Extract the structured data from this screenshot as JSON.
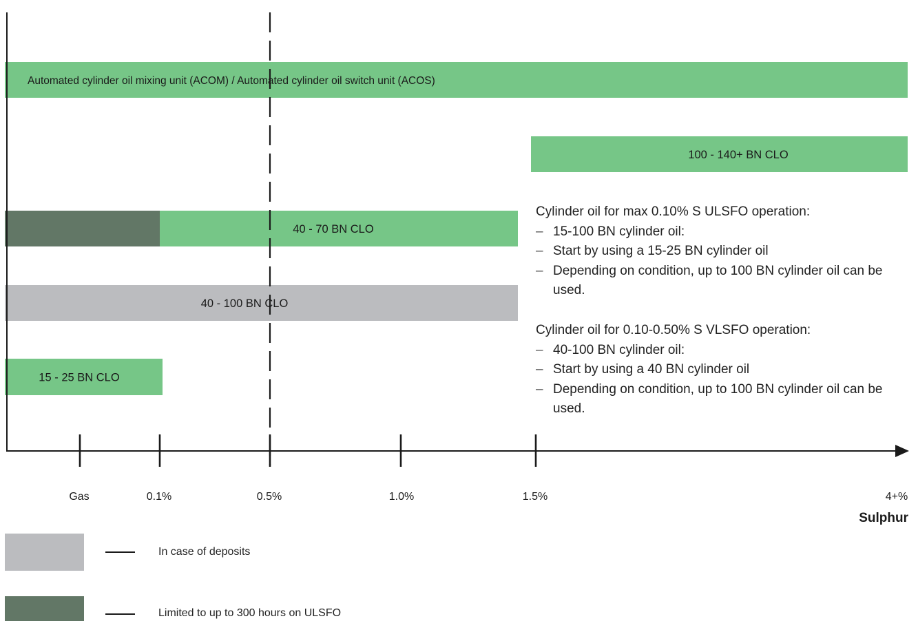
{
  "chart_data": {
    "type": "bar",
    "orientation": "horizontal",
    "xlabel": "Sulphur",
    "x_ticks": [
      "Gas",
      "0.1%",
      "0.5%",
      "1.0%",
      "1.5%",
      "4+%"
    ],
    "reference_line": "0.5%",
    "bars": [
      {
        "label": "Automated cylinder oil mixing unit (ACOM) / Automated cylinder oil switch unit (ACOS)",
        "segments": [
          {
            "from": "start",
            "to": "4+%",
            "color": "#76c687"
          }
        ]
      },
      {
        "label": "100 - 140+ BN CLO",
        "segments": [
          {
            "from": "1.5%",
            "to": "4+%",
            "color": "#76c687"
          }
        ]
      },
      {
        "label": "40 - 70 BN CLO",
        "segments": [
          {
            "from": "start",
            "to": "0.1%",
            "color": "#627766",
            "meaning": "Limited to up to 300 hours on ULSFO"
          },
          {
            "from": "0.1%",
            "to": "1.5%",
            "color": "#76c687"
          }
        ]
      },
      {
        "label": "40 - 100 BN CLO",
        "segments": [
          {
            "from": "start",
            "to": "1.5%",
            "color": "#bbbcbf",
            "meaning": "In case of deposits"
          }
        ]
      },
      {
        "label": "15 - 25 BN CLO",
        "segments": [
          {
            "from": "start",
            "to": "0.1%",
            "color": "#76c687"
          }
        ]
      }
    ],
    "legend": [
      {
        "label": "In case of deposits",
        "color": "#bbbcbf"
      },
      {
        "label": "Limited to up to 300 hours on ULSFO",
        "color": "#627766"
      }
    ]
  },
  "notes": {
    "ulsfo": {
      "heading": "Cylinder oil for max 0.10% S ULSFO operation:",
      "items": [
        "15-100 BN cylinder oil:",
        "Start by using a 15-25 BN cylinder oil",
        "Depending on condition, up to 100 BN cylinder oil can be used."
      ]
    },
    "vlsfo": {
      "heading": "Cylinder oil for 0.10-0.50% S VLSFO operation:",
      "items": [
        "40-100 BN cylinder oil:",
        "Start by using a 40 BN cylinder oil",
        "Depending on condition, up to 100 BN cylinder oil can be used."
      ]
    }
  },
  "colors": {
    "green": "#76c687",
    "dark_green": "#627766",
    "grey": "#bbbcbf",
    "axis": "#1a1a1a"
  }
}
